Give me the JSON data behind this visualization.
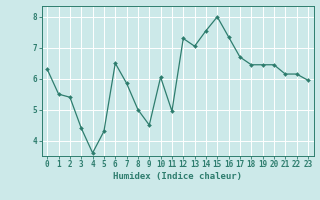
{
  "x": [
    0,
    1,
    2,
    3,
    4,
    5,
    6,
    7,
    8,
    9,
    10,
    11,
    12,
    13,
    14,
    15,
    16,
    17,
    18,
    19,
    20,
    21,
    22,
    23
  ],
  "y": [
    6.3,
    5.5,
    5.4,
    4.4,
    3.6,
    4.3,
    6.5,
    5.85,
    5.0,
    4.5,
    6.05,
    4.95,
    7.3,
    7.05,
    7.55,
    8.0,
    7.35,
    6.7,
    6.45,
    6.45,
    6.45,
    6.15,
    6.15,
    5.95
  ],
  "line_color": "#2e7d6e",
  "bg_color": "#cce9e9",
  "grid_color": "#b0d8d8",
  "xlabel": "Humidex (Indice chaleur)",
  "ylim": [
    3.5,
    8.35
  ],
  "xlim": [
    -0.5,
    23.5
  ],
  "yticks": [
    4,
    5,
    6,
    7,
    8
  ],
  "xticks": [
    0,
    1,
    2,
    3,
    4,
    5,
    6,
    7,
    8,
    9,
    10,
    11,
    12,
    13,
    14,
    15,
    16,
    17,
    18,
    19,
    20,
    21,
    22,
    23
  ],
  "xtick_labels": [
    "0",
    "1",
    "2",
    "3",
    "4",
    "5",
    "6",
    "7",
    "8",
    "9",
    "10",
    "11",
    "12",
    "13",
    "14",
    "15",
    "16",
    "17",
    "18",
    "19",
    "20",
    "21",
    "22",
    "23"
  ],
  "tick_color": "#2e7d6e",
  "text_color": "#2e7d6e",
  "label_fontsize": 6.0,
  "tick_fontsize": 5.5,
  "xlabel_fontsize": 6.5
}
